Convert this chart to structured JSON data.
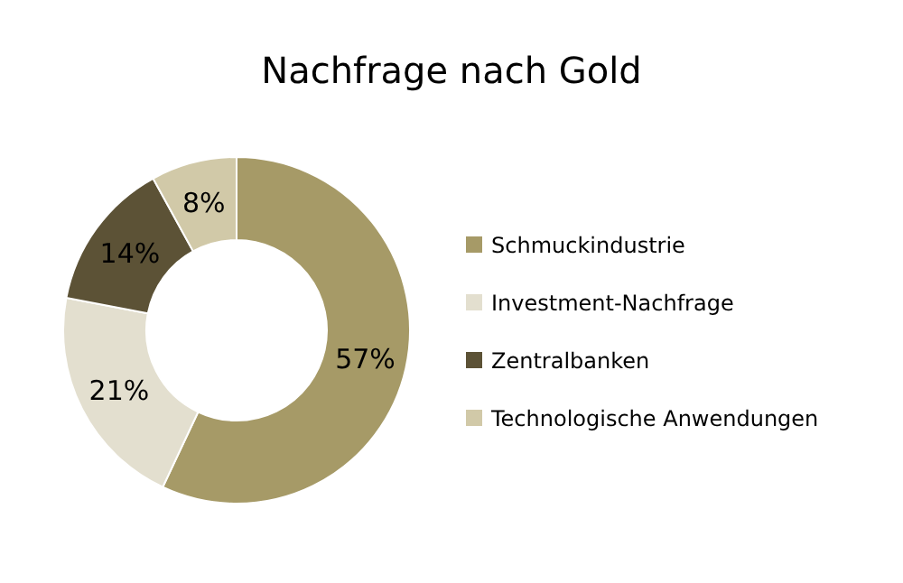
{
  "chart_data": {
    "type": "donut",
    "title": "Nachfrage nach Gold",
    "categories": [
      "Schmuckindustrie",
      "Investment-Nachfrage",
      "Zentralbanken",
      "Technologische Anwendungen"
    ],
    "values": [
      57,
      21,
      14,
      8
    ],
    "colors": [
      "#a69a67",
      "#e3dfcf",
      "#5c5236",
      "#d1c9a8"
    ],
    "value_labels": [
      "57%",
      "21%",
      "14%",
      "8%"
    ],
    "legend": "right"
  }
}
